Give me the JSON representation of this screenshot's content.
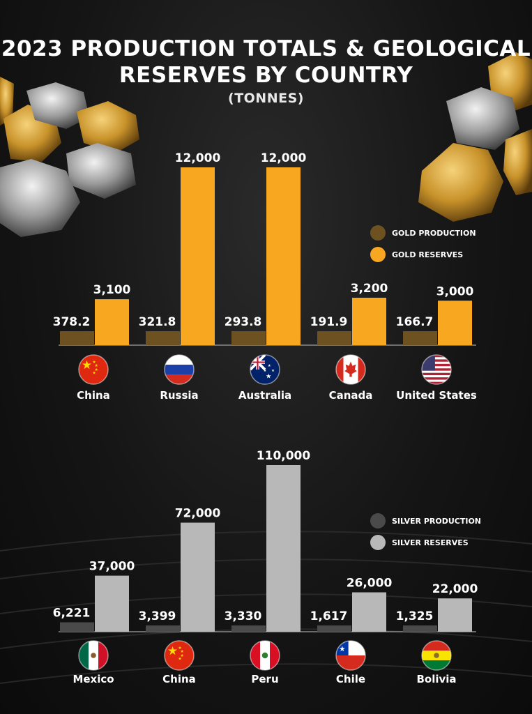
{
  "title_line1": "2023 PRODUCTION TOTALS & GEOLOGICAL",
  "title_line2": "RESERVES BY COUNTRY",
  "unit": "(TONNES)",
  "colors": {
    "gold_production": "#6e5120",
    "gold_reserves": "#f7a820",
    "silver_production": "#4a4a4a",
    "silver_reserves": "#b8b8b8",
    "baseline": "#8a8a8a"
  },
  "chart_data": [
    {
      "type": "bar",
      "categories": [
        "China",
        "Russia",
        "Australia",
        "Canada",
        "United States"
      ],
      "series": [
        {
          "name": "GOLD PRODUCTION",
          "values": [
            378.2,
            321.8,
            293.8,
            191.9,
            166.7
          ],
          "labels": [
            "378.2",
            "321.8",
            "293.8",
            "191.9",
            "166.7"
          ]
        },
        {
          "name": "GOLD RESERVES",
          "values": [
            3100,
            12000,
            12000,
            3200,
            3000
          ],
          "labels": [
            "3,100",
            "12,000",
            "12,000",
            "3,200",
            "3,000"
          ]
        }
      ],
      "legend": "top-right",
      "grid": false,
      "ylim": [
        0,
        12000
      ]
    },
    {
      "type": "bar",
      "categories": [
        "Mexico",
        "China",
        "Peru",
        "Chile",
        "Bolivia"
      ],
      "series": [
        {
          "name": "SILVER PRODUCTION",
          "values": [
            6221,
            3399,
            3330,
            1617,
            1325
          ],
          "labels": [
            "6,221",
            "3,399",
            "3,330",
            "1,617",
            "1,325"
          ]
        },
        {
          "name": "SILVER RESERVES",
          "values": [
            37000,
            72000,
            110000,
            26000,
            22000
          ],
          "labels": [
            "37,000",
            "72,000",
            "110,000",
            "26,000",
            "22,000"
          ]
        }
      ],
      "legend": "top-right",
      "grid": false,
      "ylim": [
        0,
        110000
      ]
    }
  ],
  "flags": {
    "gold": [
      "china-flag-icon",
      "russia-flag-icon",
      "australia-flag-icon",
      "canada-flag-icon",
      "usa-flag-icon"
    ],
    "silver": [
      "mexico-flag-icon",
      "china-flag-icon",
      "peru-flag-icon",
      "chile-flag-icon",
      "bolivia-flag-icon"
    ]
  }
}
